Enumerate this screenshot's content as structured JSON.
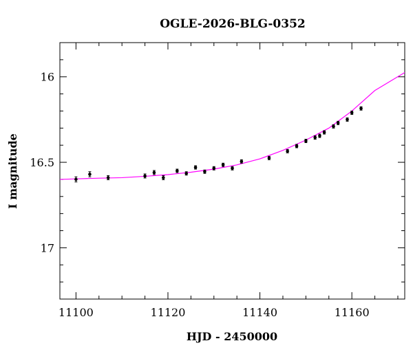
{
  "chart_data": {
    "type": "scatter",
    "title": "OGLE-2026-BLG-0352",
    "xlabel": "HJD - 2450000",
    "ylabel": "I magnitude",
    "xlim": [
      11096.5,
      11171.5
    ],
    "ylim": [
      17.3,
      15.8
    ],
    "y_inverted": true,
    "x_ticks": [
      11100,
      11120,
      11140,
      11160
    ],
    "x_tick_labels": [
      "11100",
      "11120",
      "11140",
      "11160"
    ],
    "y_ticks": [
      16,
      16.5,
      17
    ],
    "y_tick_labels": [
      "16",
      "16.5",
      "17"
    ],
    "x_minor_step": 5,
    "y_minor_step": 0.1,
    "grid": false,
    "colors": {
      "data": "#000000",
      "model": "#ff00ff"
    },
    "series": [
      {
        "kind": "data",
        "x": [
          11100.0,
          11103.0,
          11107.0,
          11115.0,
          11117.0,
          11119.0,
          11122.0,
          11124.0,
          11126.0,
          11128.0,
          11130.0,
          11132.0,
          11134.0,
          11136.0,
          11142.0,
          11146.0,
          11148.0,
          11150.0,
          11152.0,
          11153.0,
          11154.0,
          11156.0,
          11157.0,
          11159.0,
          11160.0,
          11162.0
        ],
        "y": [
          16.6,
          16.57,
          16.59,
          16.58,
          16.56,
          16.59,
          16.55,
          16.565,
          16.53,
          16.555,
          16.535,
          16.515,
          16.535,
          16.495,
          16.475,
          16.435,
          16.405,
          16.375,
          16.355,
          16.345,
          16.325,
          16.29,
          16.27,
          16.25,
          16.21,
          16.185
        ],
        "yerr": [
          0.015,
          0.015,
          0.012,
          0.012,
          0.012,
          0.012,
          0.01,
          0.01,
          0.01,
          0.01,
          0.01,
          0.01,
          0.01,
          0.01,
          0.01,
          0.01,
          0.01,
          0.01,
          0.01,
          0.01,
          0.01,
          0.01,
          0.01,
          0.01,
          0.01,
          0.01
        ]
      },
      {
        "kind": "model",
        "x": [
          11096.5,
          11100,
          11105,
          11110,
          11115,
          11120,
          11125,
          11130,
          11135,
          11140,
          11145,
          11150,
          11155,
          11160,
          11165,
          11171.5
        ],
        "y": [
          16.6,
          16.597,
          16.593,
          16.59,
          16.582,
          16.572,
          16.558,
          16.54,
          16.515,
          16.48,
          16.43,
          16.37,
          16.3,
          16.2,
          16.08,
          15.975
        ]
      }
    ]
  }
}
